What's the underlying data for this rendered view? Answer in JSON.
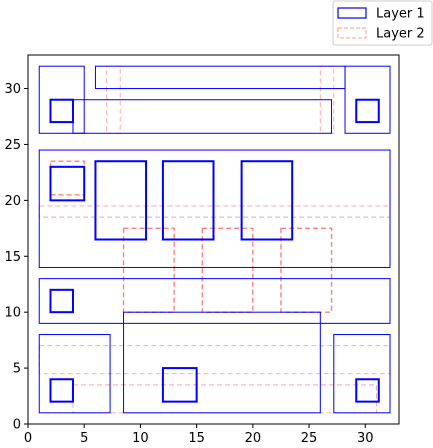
{
  "chart_data": {
    "type": "layout-rectangles",
    "xlim": [
      0,
      33
    ],
    "ylim": [
      0,
      33
    ],
    "xticks": [
      0,
      5,
      10,
      15,
      20,
      25,
      30
    ],
    "yticks": [
      0,
      5,
      10,
      15,
      20,
      25,
      30
    ],
    "grid": false,
    "legend": {
      "placement": "top-right",
      "entries": [
        {
          "label": "Layer 1",
          "color": "#0000ff",
          "style": "solid"
        },
        {
          "label": "Layer 2",
          "color": "#ff8080",
          "style": "dashed"
        }
      ]
    },
    "series": [
      {
        "name": "Layer 1",
        "color": "#0000ff",
        "style": "solid",
        "rects": [
          {
            "x": 1,
            "y": 1,
            "w": 6.3,
            "h": 7.0,
            "weight": "thin"
          },
          {
            "x": 8.5,
            "y": 1,
            "w": 17.5,
            "h": 9.0,
            "weight": "thin"
          },
          {
            "x": 27.2,
            "y": 1,
            "w": 5.0,
            "h": 7.0,
            "weight": "thin"
          },
          {
            "x": 1,
            "y": 9.0,
            "w": 31.2,
            "h": 4.0,
            "weight": "thin"
          },
          {
            "x": 1,
            "y": 14.0,
            "w": 31.2,
            "h": 10.5,
            "weight": "thin"
          },
          {
            "x": 1,
            "y": 26.0,
            "w": 4.0,
            "h": 6.0,
            "weight": "thin"
          },
          {
            "x": 4.0,
            "y": 26.0,
            "w": 23.0,
            "h": 3.0,
            "weight": "thin"
          },
          {
            "x": 6.0,
            "y": 30.0,
            "w": 22.2,
            "h": 2.0,
            "weight": "thin"
          },
          {
            "x": 28.2,
            "y": 26.0,
            "w": 4.0,
            "h": 6.0,
            "weight": "thin"
          },
          {
            "x": 2.0,
            "y": 2.0,
            "w": 2.0,
            "h": 2.0,
            "weight": "thick"
          },
          {
            "x": 12.0,
            "y": 2.0,
            "w": 3.0,
            "h": 3.0,
            "weight": "thick"
          },
          {
            "x": 29.2,
            "y": 2.0,
            "w": 2.0,
            "h": 2.0,
            "weight": "thick"
          },
          {
            "x": 2.0,
            "y": 10.0,
            "w": 2.0,
            "h": 2.0,
            "weight": "thick"
          },
          {
            "x": 2.0,
            "y": 20.0,
            "w": 3.0,
            "h": 3.0,
            "weight": "thick"
          },
          {
            "x": 6.0,
            "y": 16.5,
            "w": 4.5,
            "h": 7.0,
            "weight": "thick"
          },
          {
            "x": 12.0,
            "y": 16.5,
            "w": 4.5,
            "h": 7.0,
            "weight": "thick"
          },
          {
            "x": 19.0,
            "y": 16.5,
            "w": 4.5,
            "h": 7.0,
            "weight": "thick"
          },
          {
            "x": 2.0,
            "y": 27.0,
            "w": 2.0,
            "h": 2.0,
            "weight": "thick"
          },
          {
            "x": 29.2,
            "y": 27.0,
            "w": 2.0,
            "h": 2.0,
            "weight": "thick"
          }
        ]
      },
      {
        "name": "Layer 2",
        "color": "#ff8080",
        "style": "dashed",
        "rects": [
          {
            "x": 2.0,
            "y": 20.5,
            "w": 3.0,
            "h": 3.0,
            "weight": "normal"
          },
          {
            "x": 8.5,
            "y": 10.0,
            "w": 4.5,
            "h": 7.5,
            "weight": "normal"
          },
          {
            "x": 15.5,
            "y": 10.0,
            "w": 4.5,
            "h": 7.5,
            "weight": "normal"
          },
          {
            "x": 22.5,
            "y": 10.0,
            "w": 4.5,
            "h": 7.5,
            "weight": "normal"
          },
          {
            "x": 1.0,
            "y": 18.5,
            "w": 31.2,
            "h": 1.0,
            "weight": "faint"
          },
          {
            "x": 4.0,
            "y": 1.0,
            "w": 27.0,
            "h": 2.5,
            "weight": "faint"
          },
          {
            "x": 1.0,
            "y": 4.5,
            "w": 31.2,
            "h": 2.5,
            "weight": "faint"
          },
          {
            "x": 7.0,
            "y": 26.0,
            "w": 1.2,
            "h": 6.0,
            "weight": "faint"
          },
          {
            "x": 26.0,
            "y": 26.0,
            "w": 1.2,
            "h": 6.0,
            "weight": "faint"
          }
        ]
      }
    ]
  }
}
